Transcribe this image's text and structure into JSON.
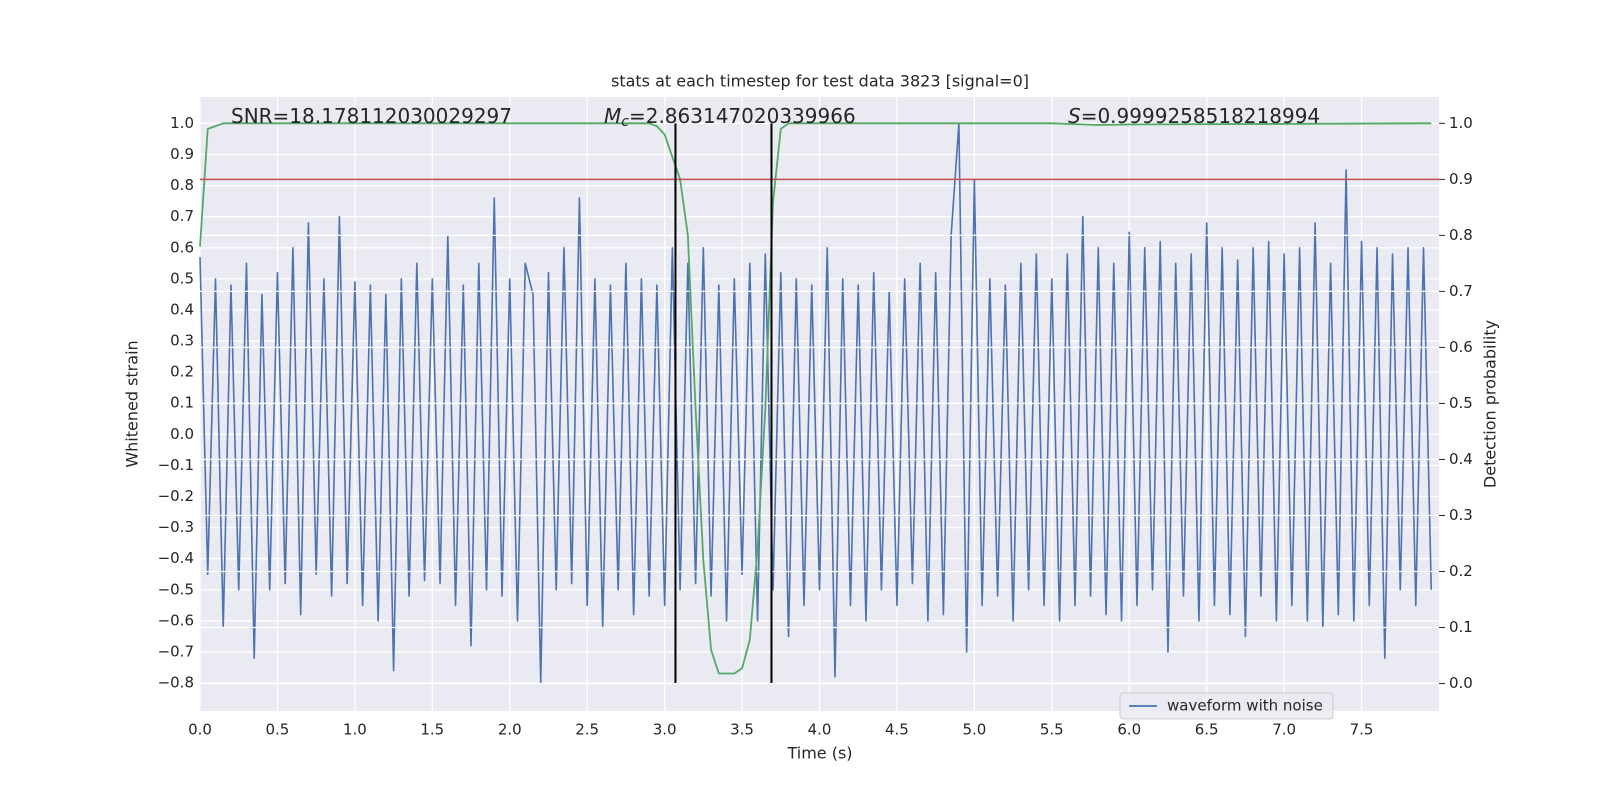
{
  "chart_data": {
    "type": "line",
    "title": "stats at each timestep for test data 3823 [signal=0]",
    "xlabel": "Time (s)",
    "ylabel": "Whitened strain",
    "y2label": "Detection probability",
    "xlim": [
      0,
      8
    ],
    "ylim": [
      -0.89,
      1.085
    ],
    "y2lim": [
      -0.049,
      1.047
    ],
    "xticks": [
      {
        "value": 0,
        "label": "0.0"
      },
      0.5,
      {
        "value": 1,
        "label": "1.0"
      },
      1.5,
      {
        "value": 2,
        "label": "2.0"
      },
      2.5,
      {
        "value": 3,
        "label": "3.0"
      },
      3.5,
      {
        "value": 4,
        "label": "4.0"
      },
      4.5,
      {
        "value": 5,
        "label": "5.0"
      },
      5.5,
      {
        "value": 6,
        "label": "6.0"
      },
      6.5,
      {
        "value": 7,
        "label": "7.0"
      },
      7.5
    ],
    "yticks": [
      {
        "value": -0.8,
        "label": "−0.8"
      },
      {
        "value": -0.7,
        "label": "−0.7"
      },
      {
        "value": -0.6,
        "label": "−0.6"
      },
      {
        "value": -0.5,
        "label": "−0.5"
      },
      {
        "value": -0.4,
        "label": "−0.4"
      },
      {
        "value": -0.3,
        "label": "−0.3"
      },
      {
        "value": -0.2,
        "label": "−0.2"
      },
      {
        "value": -0.1,
        "label": "−0.1"
      },
      {
        "value": 0,
        "label": "0.0"
      },
      0.1,
      0.2,
      0.3,
      0.4,
      0.5,
      0.6,
      0.7,
      0.8,
      0.9,
      {
        "value": 1,
        "label": "1.0"
      }
    ],
    "y2ticks": [
      {
        "value": 0,
        "label": "0.0"
      },
      0.1,
      0.2,
      0.3,
      0.4,
      0.5,
      0.6,
      0.7,
      0.8,
      0.9,
      {
        "value": 1,
        "label": "1.0"
      }
    ],
    "grid": true,
    "legend": "lower right",
    "annotations": [
      {
        "text": "SNR=18.178112030029297"
      },
      {
        "symbol": "M",
        "subscript": "c",
        "text": "=2.863147020339966"
      },
      {
        "symbol": "S",
        "text": "=0.9999258518218994"
      }
    ],
    "hlines": [
      {
        "value": 0.9,
        "axis": "y2",
        "color": "#c44e52"
      }
    ],
    "vlines": [
      {
        "x": 3.07,
        "y": [
          -0.8,
          1.0
        ]
      },
      {
        "x": 3.69,
        "y": [
          -0.8,
          1.0
        ]
      }
    ],
    "vline_color": "#000000",
    "series": [
      {
        "name": "waveform with noise",
        "color": "#4c72b0",
        "x": [
          0,
          0.05,
          0.1,
          0.15,
          0.2,
          0.25,
          0.3,
          0.35,
          0.4,
          0.45,
          0.5,
          0.55,
          0.6,
          0.65,
          0.7,
          0.75,
          0.8,
          0.85,
          0.9,
          0.95,
          1,
          1.05,
          1.1,
          1.15,
          1.2,
          1.25,
          1.3,
          1.35,
          1.4,
          1.45,
          1.5,
          1.55,
          1.6,
          1.65,
          1.7,
          1.75,
          1.8,
          1.85,
          1.9,
          1.95,
          2,
          2.05,
          2.1,
          2.15,
          2.2,
          2.25,
          2.3,
          2.35,
          2.4,
          2.45,
          2.5,
          2.55,
          2.6,
          2.65,
          2.7,
          2.75,
          2.8,
          2.85,
          2.9,
          2.95,
          3,
          3.05,
          3.1,
          3.15,
          3.2,
          3.25,
          3.3,
          3.35,
          3.4,
          3.45,
          3.5,
          3.55,
          3.6,
          3.65,
          3.7,
          3.75,
          3.8,
          3.85,
          3.9,
          3.95,
          4,
          4.05,
          4.1,
          4.15,
          4.2,
          4.25,
          4.3,
          4.35,
          4.4,
          4.45,
          4.5,
          4.55,
          4.6,
          4.65,
          4.7,
          4.75,
          4.8,
          4.85,
          4.9,
          4.95,
          5,
          5.05,
          5.1,
          5.15,
          5.2,
          5.25,
          5.3,
          5.35,
          5.4,
          5.45,
          5.5,
          5.55,
          5.6,
          5.65,
          5.7,
          5.75,
          5.8,
          5.85,
          5.9,
          5.95,
          6,
          6.05,
          6.1,
          6.15,
          6.2,
          6.25,
          6.3,
          6.35,
          6.4,
          6.45,
          6.5,
          6.55,
          6.6,
          6.65,
          6.7,
          6.75,
          6.8,
          6.85,
          6.9,
          6.95,
          7,
          7.05,
          7.1,
          7.15,
          7.2,
          7.25,
          7.3,
          7.35,
          7.4,
          7.45,
          7.5,
          7.55,
          7.6,
          7.65,
          7.7,
          7.75,
          7.8,
          7.85,
          7.9,
          7.95
        ],
        "values": [
          0.57,
          -0.45,
          0.5,
          -0.62,
          0.48,
          -0.5,
          0.55,
          -0.72,
          0.45,
          -0.5,
          0.52,
          -0.48,
          0.6,
          -0.58,
          0.68,
          -0.45,
          0.5,
          -0.52,
          0.7,
          -0.48,
          0.49,
          -0.55,
          0.48,
          -0.6,
          0.45,
          -0.76,
          0.5,
          -0.52,
          0.55,
          -0.47,
          0.5,
          -0.48,
          0.64,
          -0.55,
          0.48,
          -0.68,
          0.55,
          -0.5,
          0.76,
          -0.52,
          0.5,
          -0.6,
          0.55,
          0.45,
          -0.8,
          0.52,
          -0.5,
          0.6,
          -0.48,
          0.76,
          -0.55,
          0.5,
          -0.62,
          0.48,
          -0.5,
          0.55,
          -0.58,
          0.5,
          -0.52,
          0.48,
          -0.55,
          0.6,
          -0.5,
          0.55,
          -0.48,
          0.6,
          -0.52,
          0.48,
          -0.6,
          0.5,
          -0.45,
          0.55,
          -0.6,
          0.58,
          -0.5,
          0.52,
          -0.65,
          0.5,
          -0.55,
          0.48,
          -0.5,
          0.6,
          -0.78,
          0.5,
          -0.55,
          0.48,
          -0.6,
          0.52,
          -0.5,
          0.46,
          -0.55,
          0.5,
          -0.48,
          0.55,
          -0.6,
          0.52,
          -0.58,
          0.64,
          1.0,
          -0.7,
          0.82,
          -0.55,
          0.5,
          -0.52,
          0.48,
          -0.6,
          0.55,
          -0.5,
          0.58,
          -0.55,
          0.5,
          -0.6,
          0.58,
          -0.55,
          0.7,
          -0.52,
          0.6,
          -0.58,
          0.55,
          -0.6,
          0.65,
          -0.55,
          0.6,
          -0.5,
          0.62,
          -0.7,
          0.55,
          -0.52,
          0.58,
          -0.6,
          0.68,
          -0.55,
          0.6,
          -0.58,
          0.56,
          -0.65,
          0.6,
          -0.52,
          0.62,
          -0.6,
          0.58,
          -0.55,
          0.6,
          -0.6,
          0.68,
          -0.62,
          0.55,
          -0.58,
          0.85,
          -0.6,
          0.62,
          -0.55,
          0.6,
          -0.72,
          0.58,
          -0.5,
          0.6,
          -0.55,
          0.6,
          -0.5
        ]
      },
      {
        "color": "#55a868",
        "axis": "y2",
        "x": [
          0,
          0.05,
          0.15,
          2.9,
          2.95,
          3,
          3.05,
          3.1,
          3.15,
          3.2,
          3.25,
          3.3,
          3.35,
          3.45,
          3.5,
          3.55,
          3.6,
          3.65,
          3.7,
          3.75,
          3.8,
          5.5,
          5.8,
          6.0,
          7.95
        ],
        "values": [
          0.78,
          0.99,
          1.0,
          1.0,
          0.995,
          0.98,
          0.94,
          0.9,
          0.8,
          0.49,
          0.22,
          0.06,
          0.018,
          0.018,
          0.027,
          0.078,
          0.24,
          0.49,
          0.86,
          0.99,
          1.0,
          1.0,
          0.997,
          0.998,
          1.0
        ]
      }
    ]
  }
}
